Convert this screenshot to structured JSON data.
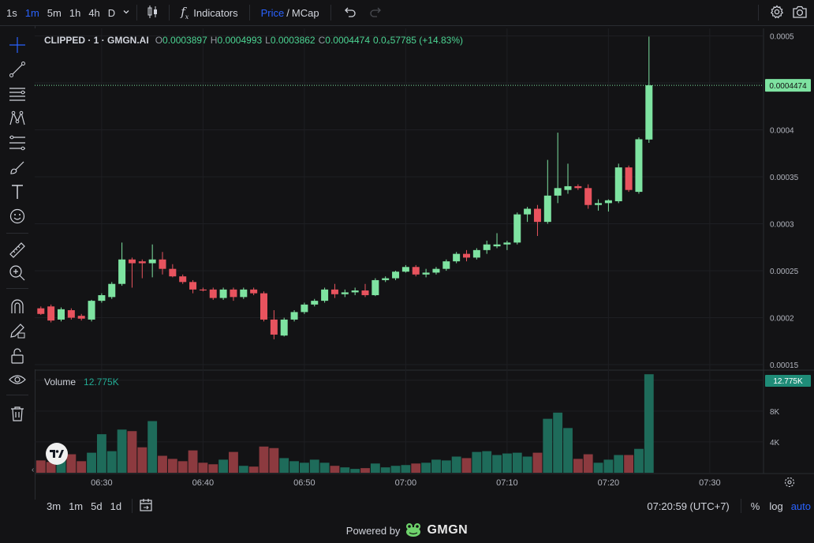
{
  "toolbar": {
    "timeframes": [
      "1s",
      "1m",
      "5m",
      "1h",
      "4h",
      "D"
    ],
    "active_timeframe": "1m",
    "indicators_label": "Indicators",
    "price_label": "Price",
    "slash": "/",
    "mcap_label": "MCap"
  },
  "legend": {
    "symbol": "CLIPPED · 1 · GMGN.AI",
    "o_label": "O",
    "o_value": "0.0003897",
    "h_label": "H",
    "h_value": "0.0004993",
    "l_label": "L",
    "l_value": "0.0003862",
    "c_label": "C",
    "c_value": "0.0004474",
    "change": "0.0₄57785 (+14.83%)"
  },
  "volume_legend": {
    "label": "Volume",
    "value": "12.775K"
  },
  "bottom": {
    "ranges": [
      "3m",
      "1m",
      "5d",
      "1d"
    ],
    "time": "07:20:59 (UTC+7)",
    "percent": "%",
    "log": "log",
    "auto": "auto"
  },
  "footer": {
    "powered_by": "Powered by",
    "brand": "GMGN"
  },
  "colors": {
    "up": "#7ee3a1",
    "down": "#e8535e",
    "vol_up": "#1e6b5a",
    "vol_down": "#8c3a3f",
    "accent": "#2962ff",
    "price_tag": "#7ee3a1"
  },
  "chart_data": {
    "type": "candlestick",
    "price_axis": {
      "ticks": [
        "0.0005",
        "0.00045",
        "0.0004",
        "0.00035",
        "0.0003",
        "0.00025",
        "0.0002",
        "0.00015"
      ],
      "range": [
        0.000145,
        0.000508
      ]
    },
    "volume_axis": {
      "ticks": [
        "12K",
        "8K",
        "4K"
      ],
      "range": [
        0,
        13000
      ]
    },
    "x_ticks": [
      "06:30",
      "06:40",
      "06:50",
      "07:00",
      "07:10",
      "07:20",
      "07:30"
    ],
    "current_price": "0.0004474",
    "current_volume": "12.775K",
    "candles": [
      {
        "t": "06:24",
        "o": 0.00021,
        "h": 0.000212,
        "l": 0.000203,
        "c": 0.000204,
        "v": 1600
      },
      {
        "t": "06:25",
        "o": 0.000212,
        "h": 0.000214,
        "l": 0.000195,
        "c": 0.000197,
        "v": 1400
      },
      {
        "t": "06:26",
        "o": 0.000198,
        "h": 0.000211,
        "l": 0.000196,
        "c": 0.000209,
        "v": 2000
      },
      {
        "t": "06:27",
        "o": 0.000208,
        "h": 0.00021,
        "l": 0.000198,
        "c": 0.0002,
        "v": 2400
      },
      {
        "t": "06:28",
        "o": 0.000202,
        "h": 0.000204,
        "l": 0.000197,
        "c": 0.000199,
        "v": 1500
      },
      {
        "t": "06:29",
        "o": 0.000198,
        "h": 0.000219,
        "l": 0.000196,
        "c": 0.000218,
        "v": 2600
      },
      {
        "t": "06:30",
        "o": 0.000218,
        "h": 0.000226,
        "l": 0.000216,
        "c": 0.000224,
        "v": 5000
      },
      {
        "t": "06:31",
        "o": 0.000222,
        "h": 0.000238,
        "l": 0.00022,
        "c": 0.000236,
        "v": 2800
      },
      {
        "t": "06:32",
        "o": 0.000236,
        "h": 0.00028,
        "l": 0.000234,
        "c": 0.000262,
        "v": 5600
      },
      {
        "t": "06:33",
        "o": 0.000262,
        "h": 0.000264,
        "l": 0.000232,
        "c": 0.000258,
        "v": 5400
      },
      {
        "t": "06:34",
        "o": 0.00026,
        "h": 0.000262,
        "l": 0.000242,
        "c": 0.000258,
        "v": 3300
      },
      {
        "t": "06:35",
        "o": 0.000258,
        "h": 0.000278,
        "l": 0.000243,
        "c": 0.000262,
        "v": 6700
      },
      {
        "t": "06:36",
        "o": 0.000262,
        "h": 0.00027,
        "l": 0.000246,
        "c": 0.000252,
        "v": 2200
      },
      {
        "t": "06:37",
        "o": 0.000252,
        "h": 0.000257,
        "l": 0.000243,
        "c": 0.000244,
        "v": 1800
      },
      {
        "t": "06:38",
        "o": 0.000244,
        "h": 0.000246,
        "l": 0.000236,
        "c": 0.000238,
        "v": 1500
      },
      {
        "t": "06:39",
        "o": 0.000238,
        "h": 0.00024,
        "l": 0.000226,
        "c": 0.00023,
        "v": 2900
      },
      {
        "t": "06:40",
        "o": 0.00023,
        "h": 0.000232,
        "l": 0.000228,
        "c": 0.000229,
        "v": 1300
      },
      {
        "t": "06:41",
        "o": 0.00023,
        "h": 0.000232,
        "l": 0.000219,
        "c": 0.000221,
        "v": 1100
      },
      {
        "t": "06:42",
        "o": 0.000221,
        "h": 0.000232,
        "l": 0.000219,
        "c": 0.00023,
        "v": 1700
      },
      {
        "t": "06:43",
        "o": 0.00023,
        "h": 0.000232,
        "l": 0.000218,
        "c": 0.000222,
        "v": 2700
      },
      {
        "t": "06:44",
        "o": 0.000222,
        "h": 0.000232,
        "l": 0.00022,
        "c": 0.00023,
        "v": 900
      },
      {
        "t": "06:45",
        "o": 0.00023,
        "h": 0.000232,
        "l": 0.000224,
        "c": 0.000226,
        "v": 800
      },
      {
        "t": "06:46",
        "o": 0.000226,
        "h": 0.000228,
        "l": 0.000196,
        "c": 0.000198,
        "v": 3400
      },
      {
        "t": "06:47",
        "o": 0.000198,
        "h": 0.000208,
        "l": 0.000177,
        "c": 0.000182,
        "v": 3200
      },
      {
        "t": "06:48",
        "o": 0.000181,
        "h": 0.0002,
        "l": 0.00018,
        "c": 0.000198,
        "v": 1900
      },
      {
        "t": "06:49",
        "o": 0.000198,
        "h": 0.000208,
        "l": 0.000196,
        "c": 0.000206,
        "v": 1500
      },
      {
        "t": "06:50",
        "o": 0.000206,
        "h": 0.000216,
        "l": 0.000204,
        "c": 0.000214,
        "v": 1300
      },
      {
        "t": "06:51",
        "o": 0.000214,
        "h": 0.00022,
        "l": 0.000212,
        "c": 0.000218,
        "v": 1700
      },
      {
        "t": "06:52",
        "o": 0.000218,
        "h": 0.000232,
        "l": 0.000216,
        "c": 0.00023,
        "v": 1300
      },
      {
        "t": "06:53",
        "o": 0.00023,
        "h": 0.000236,
        "l": 0.000221,
        "c": 0.000225,
        "v": 900
      },
      {
        "t": "06:54",
        "o": 0.000225,
        "h": 0.00023,
        "l": 0.000222,
        "c": 0.000227,
        "v": 700
      },
      {
        "t": "06:55",
        "o": 0.000227,
        "h": 0.000232,
        "l": 0.000224,
        "c": 0.000229,
        "v": 500
      },
      {
        "t": "06:56",
        "o": 0.000229,
        "h": 0.000236,
        "l": 0.000222,
        "c": 0.000224,
        "v": 600
      },
      {
        "t": "06:57",
        "o": 0.000224,
        "h": 0.000242,
        "l": 0.000223,
        "c": 0.00024,
        "v": 1200
      },
      {
        "t": "06:58",
        "o": 0.00024,
        "h": 0.000244,
        "l": 0.000238,
        "c": 0.000242,
        "v": 700
      },
      {
        "t": "06:59",
        "o": 0.000242,
        "h": 0.00025,
        "l": 0.00024,
        "c": 0.000249,
        "v": 900
      },
      {
        "t": "07:00",
        "o": 0.000249,
        "h": 0.000256,
        "l": 0.000248,
        "c": 0.000254,
        "v": 1000
      },
      {
        "t": "07:01",
        "o": 0.000254,
        "h": 0.000256,
        "l": 0.000244,
        "c": 0.000246,
        "v": 1200
      },
      {
        "t": "07:02",
        "o": 0.000246,
        "h": 0.000252,
        "l": 0.000243,
        "c": 0.000248,
        "v": 1300
      },
      {
        "t": "07:03",
        "o": 0.000248,
        "h": 0.000254,
        "l": 0.000246,
        "c": 0.000252,
        "v": 1700
      },
      {
        "t": "07:04",
        "o": 0.000252,
        "h": 0.000262,
        "l": 0.00025,
        "c": 0.00026,
        "v": 1600
      },
      {
        "t": "07:05",
        "o": 0.00026,
        "h": 0.00027,
        "l": 0.000258,
        "c": 0.000268,
        "v": 2100
      },
      {
        "t": "07:06",
        "o": 0.000268,
        "h": 0.000272,
        "l": 0.00026,
        "c": 0.000264,
        "v": 1900
      },
      {
        "t": "07:07",
        "o": 0.000264,
        "h": 0.000274,
        "l": 0.000262,
        "c": 0.000272,
        "v": 2700
      },
      {
        "t": "07:08",
        "o": 0.000272,
        "h": 0.000282,
        "l": 0.000268,
        "c": 0.000278,
        "v": 2800
      },
      {
        "t": "07:09",
        "o": 0.000276,
        "h": 0.00029,
        "l": 0.000274,
        "c": 0.000278,
        "v": 2300
      },
      {
        "t": "07:10",
        "o": 0.000278,
        "h": 0.000282,
        "l": 0.000272,
        "c": 0.00028,
        "v": 2500
      },
      {
        "t": "07:11",
        "o": 0.00028,
        "h": 0.000312,
        "l": 0.000278,
        "c": 0.00031,
        "v": 2600
      },
      {
        "t": "07:12",
        "o": 0.00031,
        "h": 0.000318,
        "l": 0.000302,
        "c": 0.000316,
        "v": 2100
      },
      {
        "t": "07:13",
        "o": 0.000316,
        "h": 0.00032,
        "l": 0.000287,
        "c": 0.000302,
        "v": 2600
      },
      {
        "t": "07:14",
        "o": 0.000302,
        "h": 0.000368,
        "l": 0.0003,
        "c": 0.00033,
        "v": 7000
      },
      {
        "t": "07:15",
        "o": 0.00033,
        "h": 0.000397,
        "l": 0.000322,
        "c": 0.000338,
        "v": 7800
      },
      {
        "t": "07:16",
        "o": 0.000336,
        "h": 0.000364,
        "l": 0.000332,
        "c": 0.00034,
        "v": 5800
      },
      {
        "t": "07:17",
        "o": 0.00034,
        "h": 0.000342,
        "l": 0.000336,
        "c": 0.000338,
        "v": 1800
      },
      {
        "t": "07:18",
        "o": 0.000338,
        "h": 0.000342,
        "l": 0.000316,
        "c": 0.00032,
        "v": 2400
      },
      {
        "t": "07:19",
        "o": 0.00032,
        "h": 0.000326,
        "l": 0.000314,
        "c": 0.000322,
        "v": 1300
      },
      {
        "t": "07:20",
        "o": 0.000322,
        "h": 0.000326,
        "l": 0.000313,
        "c": 0.000325,
        "v": 1700
      },
      {
        "t": "07:21",
        "o": 0.000324,
        "h": 0.000364,
        "l": 0.000322,
        "c": 0.00036,
        "v": 2300
      },
      {
        "t": "07:22",
        "o": 0.00036,
        "h": 0.000362,
        "l": 0.000334,
        "c": 0.000336,
        "v": 2300
      },
      {
        "t": "07:23",
        "o": 0.000334,
        "h": 0.000392,
        "l": 0.000332,
        "c": 0.00039,
        "v": 3100
      },
      {
        "t": "07:24",
        "o": 0.0003897,
        "h": 0.0004993,
        "l": 0.0003862,
        "c": 0.0004474,
        "v": 12775
      }
    ]
  }
}
